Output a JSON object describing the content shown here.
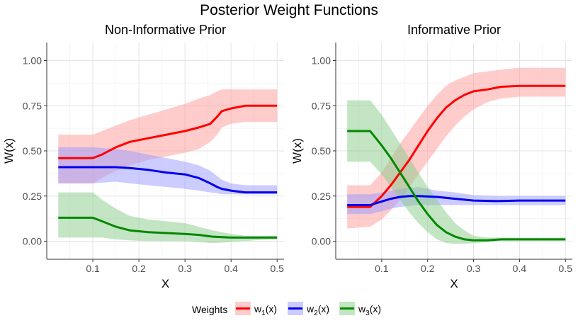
{
  "chart_data": {
    "title": "Posterior Weight Functions",
    "type": "line",
    "legend": {
      "title": "Weights",
      "position": "bottom",
      "entries": [
        {
          "label": "w",
          "sub": "1",
          "suffix": "(x)",
          "color": "#ff0000"
        },
        {
          "label": "w",
          "sub": "2",
          "suffix": "(x)",
          "color": "#0000ee"
        },
        {
          "label": "w",
          "sub": "3",
          "suffix": "(x)",
          "color": "#008800"
        }
      ]
    },
    "colors": {
      "w1_line": "#ff0000",
      "w1_band": "#ff9999",
      "w2_line": "#0000ee",
      "w2_band": "#9999ff",
      "w3_line": "#008800",
      "w3_band": "#88cc88"
    },
    "panels": [
      {
        "title": "Non-Informative Prior",
        "xlabel": "X",
        "ylabel": "W(x)",
        "xlim": [
          0.0,
          0.515
        ],
        "ylim": [
          -0.1,
          1.1
        ],
        "xticks": [
          0.1,
          0.2,
          0.3,
          0.4,
          0.5
        ],
        "xtick_labels": [
          "0.1",
          "0.2",
          "0.3",
          "0.4",
          "0.5"
        ],
        "yticks": [
          0.0,
          0.25,
          0.5,
          0.75,
          1.0
        ],
        "ytick_labels": [
          "0.00",
          "0.25",
          "0.50",
          "0.75",
          "1.00"
        ],
        "grid": true,
        "series": [
          {
            "key": "w1",
            "x": [
              0.025,
              0.1,
              0.12,
              0.15,
              0.18,
              0.22,
              0.26,
              0.3,
              0.33,
              0.355,
              0.37,
              0.38,
              0.4,
              0.43,
              0.45,
              0.5
            ],
            "y": [
              0.46,
              0.46,
              0.48,
              0.52,
              0.55,
              0.57,
              0.59,
              0.61,
              0.63,
              0.65,
              0.69,
              0.72,
              0.735,
              0.75,
              0.75,
              0.75
            ],
            "lower": [
              0.32,
              0.32,
              0.35,
              0.39,
              0.42,
              0.45,
              0.47,
              0.49,
              0.51,
              0.55,
              0.59,
              0.63,
              0.65,
              0.66,
              0.66,
              0.66
            ],
            "upper": [
              0.59,
              0.59,
              0.61,
              0.64,
              0.67,
              0.7,
              0.73,
              0.76,
              0.79,
              0.81,
              0.83,
              0.84,
              0.84,
              0.84,
              0.84,
              0.84
            ]
          },
          {
            "key": "w2",
            "x": [
              0.025,
              0.1,
              0.15,
              0.18,
              0.22,
              0.26,
              0.3,
              0.33,
              0.355,
              0.37,
              0.38,
              0.4,
              0.43,
              0.45,
              0.5
            ],
            "y": [
              0.41,
              0.41,
              0.41,
              0.405,
              0.395,
              0.38,
              0.37,
              0.35,
              0.32,
              0.3,
              0.29,
              0.28,
              0.27,
              0.27,
              0.27
            ],
            "lower": [
              0.32,
              0.32,
              0.33,
              0.32,
              0.31,
              0.3,
              0.29,
              0.28,
              0.27,
              0.265,
              0.26,
              0.26,
              0.26,
              0.26,
              0.26
            ],
            "upper": [
              0.52,
              0.52,
              0.51,
              0.5,
              0.48,
              0.46,
              0.44,
              0.42,
              0.39,
              0.36,
              0.34,
              0.32,
              0.31,
              0.31,
              0.31
            ]
          },
          {
            "key": "w3",
            "x": [
              0.025,
              0.1,
              0.12,
              0.15,
              0.18,
              0.22,
              0.26,
              0.3,
              0.33,
              0.36,
              0.4,
              0.43,
              0.45,
              0.5
            ],
            "y": [
              0.13,
              0.13,
              0.11,
              0.08,
              0.06,
              0.05,
              0.045,
              0.04,
              0.035,
              0.025,
              0.02,
              0.02,
              0.02,
              0.02
            ],
            "lower": [
              0.02,
              0.02,
              0.02,
              0.01,
              0.005,
              0.0,
              0.0,
              0.0,
              -0.005,
              -0.01,
              -0.005,
              0.0,
              0.005,
              0.01
            ],
            "upper": [
              0.27,
              0.27,
              0.23,
              0.18,
              0.14,
              0.12,
              0.11,
              0.1,
              0.08,
              0.06,
              0.04,
              0.03,
              0.03,
              0.03
            ]
          }
        ]
      },
      {
        "title": "Informative Prior",
        "xlabel": "X",
        "ylabel": "W(x)",
        "xlim": [
          0.0,
          0.515
        ],
        "ylim": [
          -0.1,
          1.1
        ],
        "xticks": [
          0.1,
          0.2,
          0.3,
          0.4,
          0.5
        ],
        "xtick_labels": [
          "0.1",
          "0.2",
          "0.3",
          "0.4",
          "0.5"
        ],
        "yticks": [
          0.0,
          0.25,
          0.5,
          0.75,
          1.0
        ],
        "ytick_labels": [
          "0.00",
          "0.25",
          "0.50",
          "0.75",
          "1.00"
        ],
        "grid": true,
        "series": [
          {
            "key": "w1",
            "x": [
              0.025,
              0.075,
              0.1,
              0.12,
              0.14,
              0.16,
              0.18,
              0.2,
              0.22,
              0.24,
              0.26,
              0.28,
              0.3,
              0.33,
              0.36,
              0.4,
              0.45,
              0.5
            ],
            "y": [
              0.19,
              0.19,
              0.25,
              0.31,
              0.38,
              0.45,
              0.53,
              0.61,
              0.68,
              0.74,
              0.78,
              0.81,
              0.83,
              0.84,
              0.855,
              0.86,
              0.86,
              0.86
            ],
            "lower": [
              0.07,
              0.08,
              0.12,
              0.17,
              0.23,
              0.3,
              0.37,
              0.44,
              0.51,
              0.58,
              0.64,
              0.69,
              0.73,
              0.77,
              0.79,
              0.8,
              0.8,
              0.8
            ],
            "upper": [
              0.31,
              0.31,
              0.38,
              0.46,
              0.54,
              0.61,
              0.68,
              0.75,
              0.81,
              0.86,
              0.89,
              0.91,
              0.93,
              0.94,
              0.95,
              0.96,
              0.96,
              0.96
            ]
          },
          {
            "key": "w2",
            "x": [
              0.025,
              0.075,
              0.1,
              0.12,
              0.14,
              0.16,
              0.18,
              0.22,
              0.26,
              0.3,
              0.35,
              0.4,
              0.45,
              0.5
            ],
            "y": [
              0.2,
              0.2,
              0.22,
              0.235,
              0.245,
              0.25,
              0.25,
              0.245,
              0.235,
              0.225,
              0.222,
              0.225,
              0.225,
              0.225
            ],
            "lower": [
              0.15,
              0.15,
              0.165,
              0.18,
              0.19,
              0.195,
              0.2,
              0.2,
              0.2,
              0.2,
              0.2,
              0.2,
              0.2,
              0.2
            ],
            "upper": [
              0.26,
              0.26,
              0.27,
              0.28,
              0.29,
              0.295,
              0.3,
              0.28,
              0.27,
              0.255,
              0.25,
              0.25,
              0.25,
              0.25
            ]
          },
          {
            "key": "w3",
            "x": [
              0.025,
              0.075,
              0.1,
              0.12,
              0.14,
              0.16,
              0.18,
              0.2,
              0.22,
              0.24,
              0.26,
              0.28,
              0.3,
              0.33,
              0.36,
              0.4,
              0.45,
              0.5
            ],
            "y": [
              0.61,
              0.61,
              0.53,
              0.46,
              0.38,
              0.3,
              0.22,
              0.15,
              0.09,
              0.05,
              0.025,
              0.01,
              0.005,
              0.005,
              0.01,
              0.01,
              0.01,
              0.01
            ],
            "lower": [
              0.44,
              0.44,
              0.37,
              0.3,
              0.23,
              0.16,
              0.1,
              0.05,
              0.01,
              -0.01,
              -0.015,
              -0.015,
              -0.01,
              -0.005,
              0.0,
              0.0,
              0.0,
              0.0
            ],
            "upper": [
              0.78,
              0.78,
              0.7,
              0.62,
              0.54,
              0.46,
              0.38,
              0.3,
              0.23,
              0.16,
              0.1,
              0.06,
              0.03,
              0.02,
              0.02,
              0.02,
              0.02,
              0.02
            ]
          }
        ]
      }
    ]
  }
}
